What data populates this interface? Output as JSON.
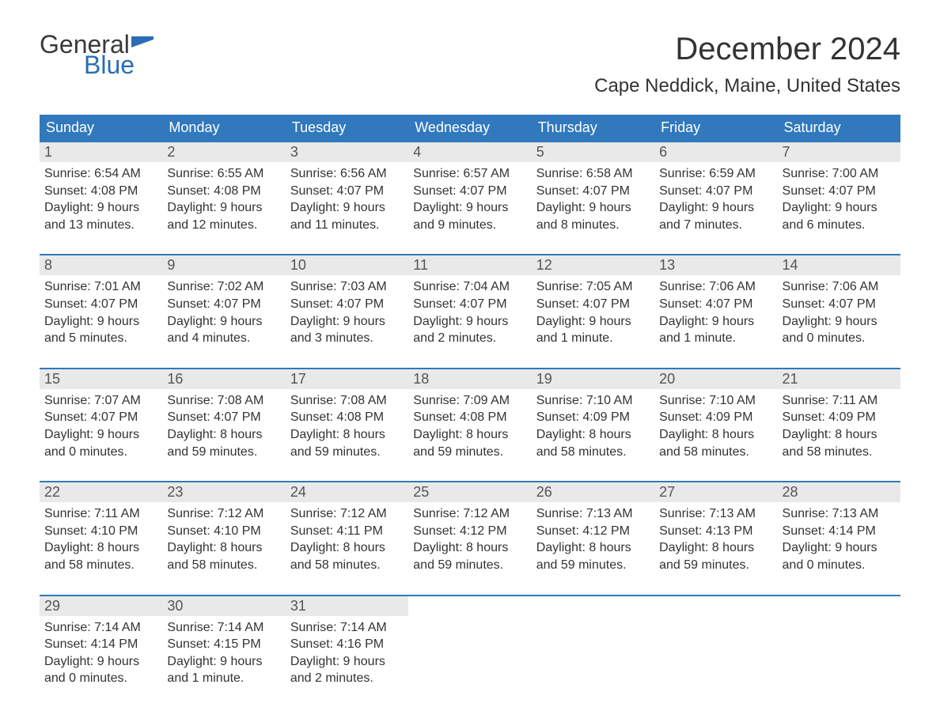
{
  "brand": {
    "general": "General",
    "blue": "Blue",
    "flag_color": "#2a6db5"
  },
  "title": "December 2024",
  "location": "Cape Neddick, Maine, United States",
  "colors": {
    "header_bg": "#3178bd",
    "header_text": "#ffffff",
    "daynum_bg": "#e9e9e9",
    "daynum_text": "#555555",
    "body_text": "#333333",
    "week_border": "#3178bd",
    "page_bg": "#ffffff"
  },
  "days_of_week": [
    "Sunday",
    "Monday",
    "Tuesday",
    "Wednesday",
    "Thursday",
    "Friday",
    "Saturday"
  ],
  "weeks": [
    [
      {
        "n": "1",
        "sunrise": "Sunrise: 6:54 AM",
        "sunset": "Sunset: 4:08 PM",
        "daylight": "Daylight: 9 hours and 13 minutes."
      },
      {
        "n": "2",
        "sunrise": "Sunrise: 6:55 AM",
        "sunset": "Sunset: 4:08 PM",
        "daylight": "Daylight: 9 hours and 12 minutes."
      },
      {
        "n": "3",
        "sunrise": "Sunrise: 6:56 AM",
        "sunset": "Sunset: 4:07 PM",
        "daylight": "Daylight: 9 hours and 11 minutes."
      },
      {
        "n": "4",
        "sunrise": "Sunrise: 6:57 AM",
        "sunset": "Sunset: 4:07 PM",
        "daylight": "Daylight: 9 hours and 9 minutes."
      },
      {
        "n": "5",
        "sunrise": "Sunrise: 6:58 AM",
        "sunset": "Sunset: 4:07 PM",
        "daylight": "Daylight: 9 hours and 8 minutes."
      },
      {
        "n": "6",
        "sunrise": "Sunrise: 6:59 AM",
        "sunset": "Sunset: 4:07 PM",
        "daylight": "Daylight: 9 hours and 7 minutes."
      },
      {
        "n": "7",
        "sunrise": "Sunrise: 7:00 AM",
        "sunset": "Sunset: 4:07 PM",
        "daylight": "Daylight: 9 hours and 6 minutes."
      }
    ],
    [
      {
        "n": "8",
        "sunrise": "Sunrise: 7:01 AM",
        "sunset": "Sunset: 4:07 PM",
        "daylight": "Daylight: 9 hours and 5 minutes."
      },
      {
        "n": "9",
        "sunrise": "Sunrise: 7:02 AM",
        "sunset": "Sunset: 4:07 PM",
        "daylight": "Daylight: 9 hours and 4 minutes."
      },
      {
        "n": "10",
        "sunrise": "Sunrise: 7:03 AM",
        "sunset": "Sunset: 4:07 PM",
        "daylight": "Daylight: 9 hours and 3 minutes."
      },
      {
        "n": "11",
        "sunrise": "Sunrise: 7:04 AM",
        "sunset": "Sunset: 4:07 PM",
        "daylight": "Daylight: 9 hours and 2 minutes."
      },
      {
        "n": "12",
        "sunrise": "Sunrise: 7:05 AM",
        "sunset": "Sunset: 4:07 PM",
        "daylight": "Daylight: 9 hours and 1 minute."
      },
      {
        "n": "13",
        "sunrise": "Sunrise: 7:06 AM",
        "sunset": "Sunset: 4:07 PM",
        "daylight": "Daylight: 9 hours and 1 minute."
      },
      {
        "n": "14",
        "sunrise": "Sunrise: 7:06 AM",
        "sunset": "Sunset: 4:07 PM",
        "daylight": "Daylight: 9 hours and 0 minutes."
      }
    ],
    [
      {
        "n": "15",
        "sunrise": "Sunrise: 7:07 AM",
        "sunset": "Sunset: 4:07 PM",
        "daylight": "Daylight: 9 hours and 0 minutes."
      },
      {
        "n": "16",
        "sunrise": "Sunrise: 7:08 AM",
        "sunset": "Sunset: 4:07 PM",
        "daylight": "Daylight: 8 hours and 59 minutes."
      },
      {
        "n": "17",
        "sunrise": "Sunrise: 7:08 AM",
        "sunset": "Sunset: 4:08 PM",
        "daylight": "Daylight: 8 hours and 59 minutes."
      },
      {
        "n": "18",
        "sunrise": "Sunrise: 7:09 AM",
        "sunset": "Sunset: 4:08 PM",
        "daylight": "Daylight: 8 hours and 59 minutes."
      },
      {
        "n": "19",
        "sunrise": "Sunrise: 7:10 AM",
        "sunset": "Sunset: 4:09 PM",
        "daylight": "Daylight: 8 hours and 58 minutes."
      },
      {
        "n": "20",
        "sunrise": "Sunrise: 7:10 AM",
        "sunset": "Sunset: 4:09 PM",
        "daylight": "Daylight: 8 hours and 58 minutes."
      },
      {
        "n": "21",
        "sunrise": "Sunrise: 7:11 AM",
        "sunset": "Sunset: 4:09 PM",
        "daylight": "Daylight: 8 hours and 58 minutes."
      }
    ],
    [
      {
        "n": "22",
        "sunrise": "Sunrise: 7:11 AM",
        "sunset": "Sunset: 4:10 PM",
        "daylight": "Daylight: 8 hours and 58 minutes."
      },
      {
        "n": "23",
        "sunrise": "Sunrise: 7:12 AM",
        "sunset": "Sunset: 4:10 PM",
        "daylight": "Daylight: 8 hours and 58 minutes."
      },
      {
        "n": "24",
        "sunrise": "Sunrise: 7:12 AM",
        "sunset": "Sunset: 4:11 PM",
        "daylight": "Daylight: 8 hours and 58 minutes."
      },
      {
        "n": "25",
        "sunrise": "Sunrise: 7:12 AM",
        "sunset": "Sunset: 4:12 PM",
        "daylight": "Daylight: 8 hours and 59 minutes."
      },
      {
        "n": "26",
        "sunrise": "Sunrise: 7:13 AM",
        "sunset": "Sunset: 4:12 PM",
        "daylight": "Daylight: 8 hours and 59 minutes."
      },
      {
        "n": "27",
        "sunrise": "Sunrise: 7:13 AM",
        "sunset": "Sunset: 4:13 PM",
        "daylight": "Daylight: 8 hours and 59 minutes."
      },
      {
        "n": "28",
        "sunrise": "Sunrise: 7:13 AM",
        "sunset": "Sunset: 4:14 PM",
        "daylight": "Daylight: 9 hours and 0 minutes."
      }
    ],
    [
      {
        "n": "29",
        "sunrise": "Sunrise: 7:14 AM",
        "sunset": "Sunset: 4:14 PM",
        "daylight": "Daylight: 9 hours and 0 minutes."
      },
      {
        "n": "30",
        "sunrise": "Sunrise: 7:14 AM",
        "sunset": "Sunset: 4:15 PM",
        "daylight": "Daylight: 9 hours and 1 minute."
      },
      {
        "n": "31",
        "sunrise": "Sunrise: 7:14 AM",
        "sunset": "Sunset: 4:16 PM",
        "daylight": "Daylight: 9 hours and 2 minutes."
      },
      null,
      null,
      null,
      null
    ]
  ]
}
